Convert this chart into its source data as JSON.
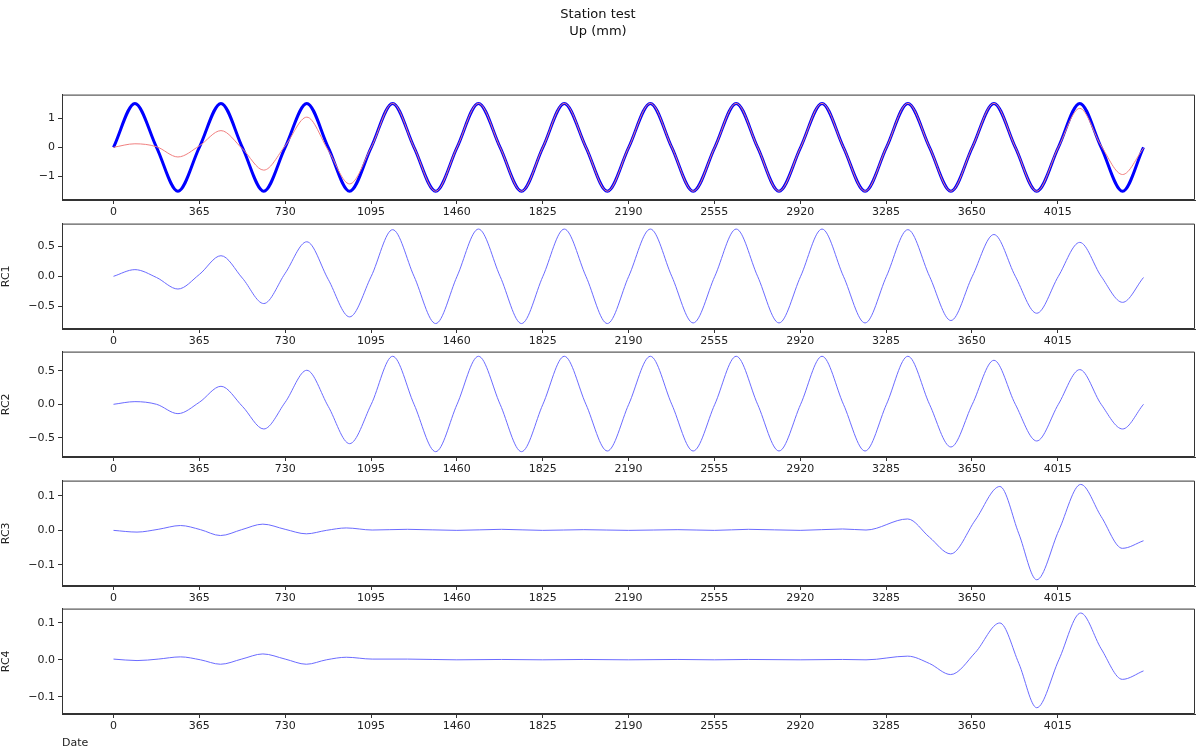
{
  "chart_data": [
    {
      "type": "line",
      "title": "Station test",
      "subtitle": "Up (mm)",
      "marker": "none",
      "grid": false,
      "x": [
        0,
        91,
        183,
        274,
        365,
        457,
        548,
        639,
        730,
        822,
        913,
        1004,
        1096,
        1187,
        1278,
        1370,
        1461,
        1552,
        1644,
        1735,
        1826,
        1917,
        2009,
        2100,
        2191,
        2283,
        2374,
        2465,
        2557,
        2648,
        2739,
        2830,
        2922,
        3013,
        3104,
        3196,
        3287,
        3378,
        3470,
        3561,
        3652,
        3744,
        3835,
        3926,
        4018,
        4109,
        4200,
        4291,
        4380
      ],
      "xlim": [
        -219,
        4599
      ],
      "xticks": [
        0,
        365,
        730,
        1095,
        1460,
        1825,
        2190,
        2555,
        2920,
        3285,
        3650,
        4015
      ],
      "ylim": [
        -1.8,
        1.8
      ],
      "yticks": [
        {
          "value": -1,
          "label": "−1"
        },
        0,
        1
      ],
      "series": [
        {
          "color": "#0000ff",
          "values": [
            0,
            1.5,
            0,
            -1.5,
            0,
            1.5,
            0,
            -1.5,
            0,
            1.5,
            0,
            -1.5,
            0,
            1.5,
            0,
            -1.5,
            0,
            1.5,
            0,
            -1.5,
            0,
            1.5,
            0,
            -1.5,
            0,
            1.5,
            0,
            -1.5,
            0,
            1.5,
            0,
            -1.5,
            0,
            1.5,
            0,
            -1.5,
            0,
            1.5,
            0,
            -1.5,
            0,
            1.5,
            0,
            -1.5,
            0,
            1.5,
            0,
            -1.5,
            0
          ]
        },
        {
          "color": "#f08080",
          "values": [
            0,
            0.12,
            0.02,
            -0.33,
            0.05,
            0.57,
            -0.05,
            -0.78,
            0.05,
            1.03,
            -0.1,
            -1.25,
            0,
            1.5,
            0,
            -1.5,
            0,
            1.5,
            0,
            -1.5,
            0,
            1.5,
            0,
            -1.5,
            0,
            1.5,
            0,
            -1.5,
            0,
            1.5,
            0,
            -1.5,
            0,
            1.5,
            0,
            -1.5,
            0,
            1.5,
            0,
            -1.5,
            0,
            1.5,
            0,
            -1.5,
            0,
            1.33,
            0.05,
            -0.93,
            -0.03
          ]
        }
      ]
    },
    {
      "type": "line",
      "ylabel": "RC1",
      "marker": "none",
      "grid": false,
      "x": [
        0,
        91,
        183,
        274,
        365,
        457,
        548,
        639,
        730,
        822,
        913,
        1004,
        1096,
        1187,
        1278,
        1370,
        1461,
        1552,
        1644,
        1735,
        1826,
        1917,
        2009,
        2100,
        2191,
        2283,
        2374,
        2465,
        2557,
        2648,
        2739,
        2830,
        2922,
        3013,
        3104,
        3196,
        3287,
        3378,
        3470,
        3561,
        3652,
        3744,
        3835,
        3926,
        4018,
        4109,
        4200,
        4291,
        4380
      ],
      "xlim": [
        -219,
        4599
      ],
      "xticks": [
        0,
        365,
        730,
        1095,
        1460,
        1825,
        2190,
        2555,
        2920,
        3285,
        3650,
        4015
      ],
      "ylim": [
        -0.87,
        0.87
      ],
      "yticks": [
        {
          "value": -0.5,
          "label": "−0.5"
        },
        {
          "value": 0,
          "label": "0.0"
        },
        0.5
      ],
      "series": [
        {
          "color": "#6b6bff",
          "values": [
            0,
            0.11,
            -0.02,
            -0.21,
            0.03,
            0.34,
            -0.03,
            -0.45,
            0.05,
            0.57,
            -0.05,
            -0.67,
            0,
            0.77,
            0,
            -0.78,
            0,
            0.78,
            0,
            -0.78,
            0,
            0.78,
            0,
            -0.78,
            0,
            0.78,
            0,
            -0.77,
            0,
            0.78,
            0,
            -0.77,
            0,
            0.78,
            0,
            -0.77,
            0,
            0.77,
            0,
            -0.73,
            0,
            0.69,
            0,
            -0.61,
            0,
            0.56,
            0,
            -0.43,
            -0.02
          ]
        }
      ]
    },
    {
      "type": "line",
      "ylabel": "RC2",
      "marker": "none",
      "grid": false,
      "x": [
        0,
        91,
        183,
        274,
        365,
        457,
        548,
        639,
        730,
        822,
        913,
        1004,
        1096,
        1187,
        1278,
        1370,
        1461,
        1552,
        1644,
        1735,
        1826,
        1917,
        2009,
        2100,
        2191,
        2283,
        2374,
        2465,
        2557,
        2648,
        2739,
        2830,
        2922,
        3013,
        3104,
        3196,
        3287,
        3378,
        3470,
        3561,
        3652,
        3744,
        3835,
        3926,
        4018,
        4109,
        4200,
        4291,
        4380
      ],
      "xlim": [
        -219,
        4599
      ],
      "xticks": [
        0,
        365,
        730,
        1095,
        1460,
        1825,
        2190,
        2555,
        2920,
        3285,
        3650,
        4015
      ],
      "ylim": [
        -0.79,
        0.79
      ],
      "yticks": [
        {
          "value": -0.5,
          "label": "−0.5"
        },
        {
          "value": 0,
          "label": "0.0"
        },
        0.5
      ],
      "series": [
        {
          "color": "#6b6bff",
          "values": [
            0,
            0.04,
            0,
            -0.14,
            0.03,
            0.27,
            -0.03,
            -0.37,
            0.03,
            0.51,
            -0.03,
            -0.59,
            0,
            0.72,
            0,
            -0.71,
            0,
            0.72,
            0,
            -0.71,
            0,
            0.72,
            0,
            -0.7,
            0,
            0.72,
            0,
            -0.7,
            0,
            0.72,
            0,
            -0.7,
            0,
            0.72,
            0,
            -0.7,
            0,
            0.72,
            0,
            -0.64,
            0,
            0.66,
            0,
            -0.55,
            0,
            0.52,
            0,
            -0.37,
            0
          ]
        }
      ]
    },
    {
      "type": "line",
      "ylabel": "RC3",
      "marker": "none",
      "grid": false,
      "x": [
        0,
        100,
        190,
        285,
        370,
        455,
        545,
        635,
        730,
        820,
        905,
        990,
        1100,
        1250,
        1460,
        1650,
        1825,
        2000,
        2190,
        2400,
        2555,
        2700,
        2920,
        3100,
        3200,
        3377,
        3470,
        3560,
        3665,
        3769,
        3850,
        3926,
        4020,
        4113,
        4200,
        4290,
        4380
      ],
      "xlim": [
        -219,
        4599
      ],
      "xticks": [
        0,
        365,
        730,
        1095,
        1460,
        1825,
        2190,
        2555,
        2920,
        3285,
        3650,
        4015
      ],
      "ylim": [
        -0.161,
        0.144
      ],
      "yticks": [
        {
          "value": -0.1,
          "label": "−0.1"
        },
        {
          "value": 0,
          "label": "0.0"
        },
        0.1
      ],
      "series": [
        {
          "color": "#6b6bff",
          "values": [
            0,
            -0.005,
            0.003,
            0.014,
            0.002,
            -0.015,
            0.002,
            0.018,
            0.003,
            -0.01,
            0,
            0.007,
            0.001,
            0.003,
            0,
            0.003,
            0,
            0.002,
            0,
            0.002,
            0,
            0.003,
            0,
            0.004,
            0.001,
            0.033,
            -0.02,
            -0.068,
            0.03,
            0.127,
            -0.01,
            -0.143,
            0,
            0.133,
            0.04,
            -0.052,
            -0.03
          ]
        }
      ]
    },
    {
      "type": "line",
      "ylabel": "RC4",
      "xlabel": "Date",
      "marker": "none",
      "grid": false,
      "x": [
        0,
        100,
        190,
        285,
        370,
        455,
        545,
        635,
        730,
        820,
        905,
        990,
        1100,
        1250,
        1460,
        1650,
        1825,
        2000,
        2190,
        2400,
        2555,
        2700,
        2920,
        3100,
        3200,
        3377,
        3470,
        3560,
        3665,
        3769,
        3850,
        3926,
        4020,
        4113,
        4200,
        4290,
        4380
      ],
      "xlim": [
        -219,
        4599
      ],
      "xticks": [
        0,
        365,
        730,
        1095,
        1460,
        1825,
        2190,
        2555,
        2920,
        3285,
        3650,
        4015
      ],
      "ylim": [
        -0.147,
        0.139
      ],
      "yticks": [
        {
          "value": -0.1,
          "label": "−0.1"
        },
        {
          "value": 0,
          "label": "0.0"
        },
        0.1
      ],
      "series": [
        {
          "color": "#6b6bff",
          "values": [
            0.002,
            -0.002,
            0.002,
            0.008,
            0,
            -0.012,
            0.002,
            0.016,
            0.002,
            -0.012,
            0,
            0.007,
            0.002,
            0.002,
            0,
            0.001,
            0,
            0.001,
            0,
            0.001,
            0,
            0.001,
            0,
            0.001,
            0,
            0.01,
            -0.01,
            -0.04,
            0.02,
            0.1,
            -0.01,
            -0.13,
            0,
            0.127,
            0.03,
            -0.053,
            -0.03
          ]
        }
      ]
    }
  ]
}
